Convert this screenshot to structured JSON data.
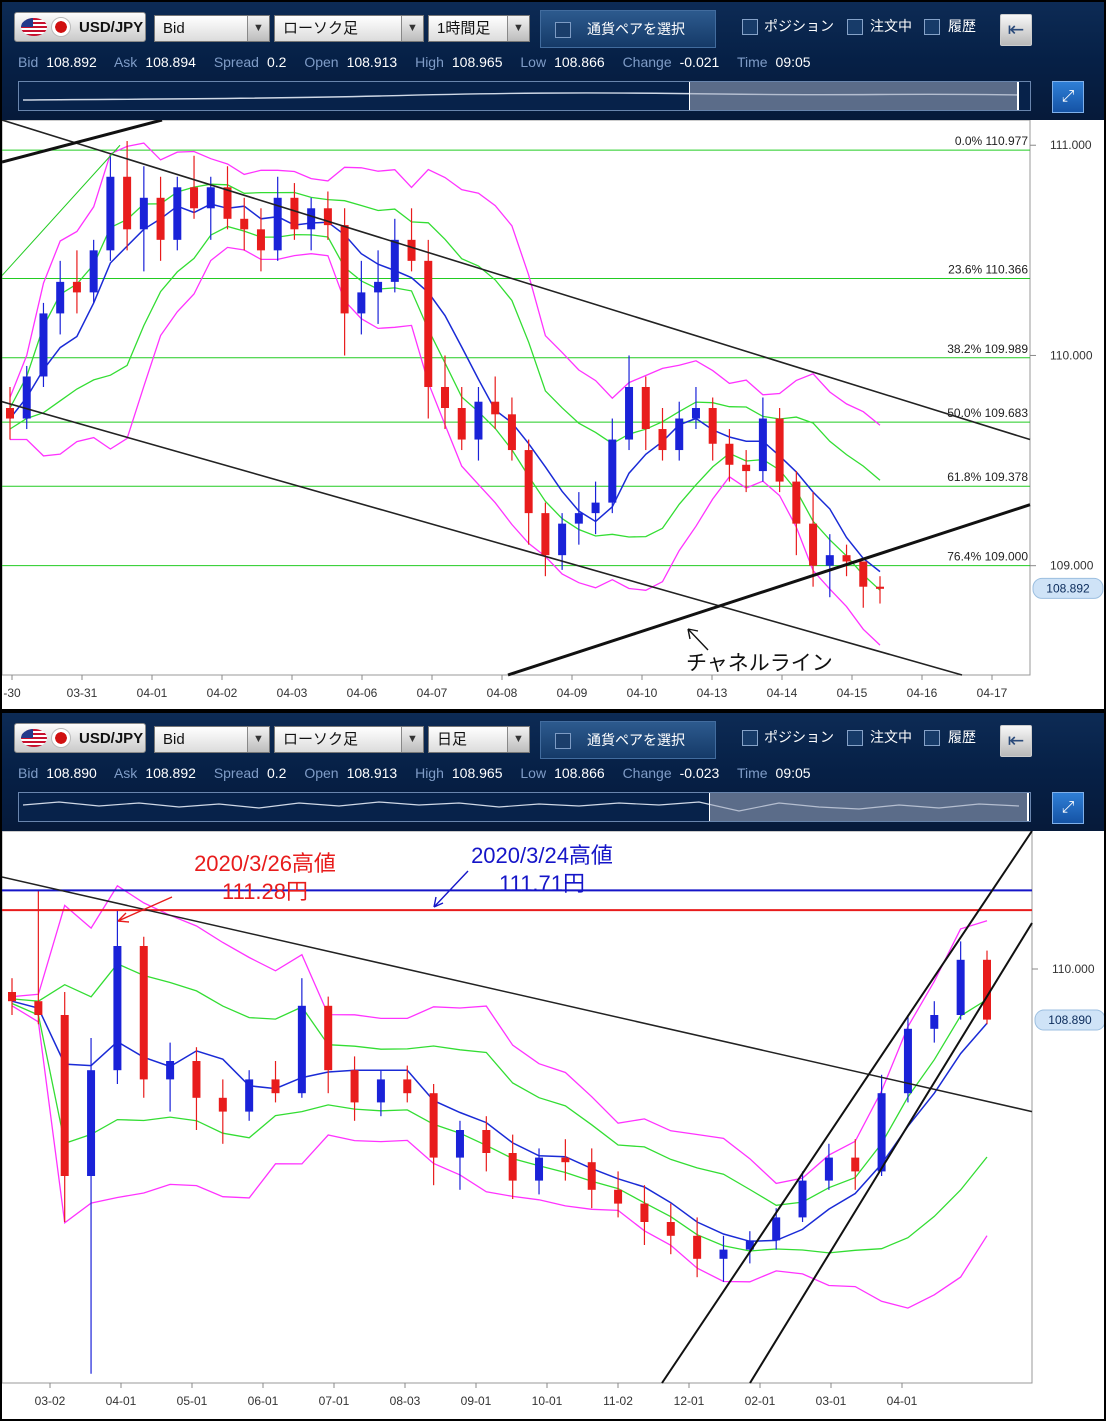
{
  "panel_top": {
    "toolbar": {
      "pair": "USD/JPY",
      "price_type": "Bid",
      "chart_type": "ローソク足",
      "timeframe": "1時間足",
      "pair_select": "通貨ペアを選択",
      "positions": "ポジション",
      "orders": "注文中",
      "history": "履歴"
    },
    "quote": [
      {
        "label": "Bid",
        "value": "108.892"
      },
      {
        "label": "Ask",
        "value": "108.894"
      },
      {
        "label": "Spread",
        "value": "0.2"
      },
      {
        "label": "Open",
        "value": "108.913"
      },
      {
        "label": "High",
        "value": "108.965"
      },
      {
        "label": "Low",
        "value": "108.866"
      },
      {
        "label": "Change",
        "value": "-0.021"
      },
      {
        "label": "Time",
        "value": "09:05"
      }
    ]
  },
  "panel_bottom": {
    "toolbar": {
      "pair": "USD/JPY",
      "price_type": "Bid",
      "chart_type": "ローソク足",
      "timeframe": "日足",
      "pair_select": "通貨ペアを選択",
      "positions": "ポジション",
      "orders": "注文中",
      "history": "履歴"
    },
    "quote": [
      {
        "label": "Bid",
        "value": "108.890"
      },
      {
        "label": "Ask",
        "value": "108.892"
      },
      {
        "label": "Spread",
        "value": "0.2"
      },
      {
        "label": "Open",
        "value": "108.913"
      },
      {
        "label": "High",
        "value": "108.965"
      },
      {
        "label": "Low",
        "value": "108.866"
      },
      {
        "label": "Change",
        "value": "-0.023"
      },
      {
        "label": "Time",
        "value": "09:05"
      }
    ]
  },
  "chart_data": [
    {
      "type": "candlestick",
      "timeframe": "1時間足",
      "x_ticks": [
        "-30",
        "03-31",
        "04-01",
        "04-02",
        "04-03",
        "04-06",
        "04-07",
        "04-08",
        "04-09",
        "04-10",
        "04-13",
        "04-14",
        "04-15",
        "04-16",
        "04-17"
      ],
      "y_ticks": [
        111.0,
        110.0,
        109.0
      ],
      "ylim": [
        108.48,
        111.12
      ],
      "current_price": {
        "value": 108.892,
        "label": "108.892"
      },
      "fibonacci": [
        {
          "label": "0.0%",
          "value": 110.977
        },
        {
          "label": "23.6%",
          "value": 110.366
        },
        {
          "label": "38.2%",
          "value": 109.989
        },
        {
          "label": "50.0%",
          "value": 109.683
        },
        {
          "label": "61.8%",
          "value": 109.378
        },
        {
          "label": "76.4%",
          "value": 109.0
        }
      ],
      "annotation": "チャネルライン",
      "candles": [
        [
          109.75,
          109.85,
          109.6,
          109.7
        ],
        [
          109.7,
          109.95,
          109.65,
          109.9
        ],
        [
          109.9,
          110.25,
          109.85,
          110.2
        ],
        [
          110.2,
          110.45,
          110.1,
          110.35
        ],
        [
          110.35,
          110.5,
          110.2,
          110.3
        ],
        [
          110.3,
          110.55,
          110.25,
          110.5
        ],
        [
          110.5,
          110.95,
          110.45,
          110.85
        ],
        [
          110.85,
          111.02,
          110.5,
          110.6
        ],
        [
          110.6,
          110.9,
          110.4,
          110.75
        ],
        [
          110.75,
          110.85,
          110.45,
          110.55
        ],
        [
          110.55,
          110.85,
          110.5,
          110.8
        ],
        [
          110.8,
          110.95,
          110.65,
          110.7
        ],
        [
          110.7,
          110.85,
          110.55,
          110.8
        ],
        [
          110.8,
          110.9,
          110.6,
          110.65
        ],
        [
          110.65,
          110.75,
          110.5,
          110.6
        ],
        [
          110.6,
          110.7,
          110.4,
          110.5
        ],
        [
          110.5,
          110.85,
          110.45,
          110.75
        ],
        [
          110.75,
          110.82,
          110.55,
          110.6
        ],
        [
          110.6,
          110.75,
          110.5,
          110.7
        ],
        [
          110.7,
          110.78,
          110.55,
          110.62
        ],
        [
          110.62,
          110.7,
          110.0,
          110.2
        ],
        [
          110.2,
          110.45,
          110.1,
          110.3
        ],
        [
          110.3,
          110.5,
          110.15,
          110.35
        ],
        [
          110.35,
          110.65,
          110.3,
          110.55
        ],
        [
          110.55,
          110.7,
          110.4,
          110.45
        ],
        [
          110.45,
          110.55,
          109.7,
          109.85
        ],
        [
          109.85,
          110.0,
          109.65,
          109.75
        ],
        [
          109.75,
          109.85,
          109.55,
          109.6
        ],
        [
          109.6,
          109.85,
          109.5,
          109.78
        ],
        [
          109.78,
          109.9,
          109.65,
          109.72
        ],
        [
          109.72,
          109.8,
          109.5,
          109.55
        ],
        [
          109.55,
          109.6,
          109.1,
          109.25
        ],
        [
          109.25,
          109.3,
          108.95,
          109.05
        ],
        [
          109.05,
          109.25,
          108.98,
          109.2
        ],
        [
          109.2,
          109.35,
          109.1,
          109.25
        ],
        [
          109.25,
          109.4,
          109.15,
          109.3
        ],
        [
          109.3,
          109.7,
          109.25,
          109.6
        ],
        [
          109.6,
          110.0,
          109.55,
          109.85
        ],
        [
          109.85,
          109.9,
          109.55,
          109.65
        ],
        [
          109.65,
          109.75,
          109.5,
          109.55
        ],
        [
          109.55,
          109.78,
          109.5,
          109.7
        ],
        [
          109.7,
          109.85,
          109.65,
          109.75
        ],
        [
          109.75,
          109.8,
          109.5,
          109.58
        ],
        [
          109.58,
          109.65,
          109.4,
          109.48
        ],
        [
          109.48,
          109.55,
          109.35,
          109.45
        ],
        [
          109.45,
          109.8,
          109.4,
          109.7
        ],
        [
          109.7,
          109.75,
          109.35,
          109.4
        ],
        [
          109.4,
          109.45,
          109.05,
          109.2
        ],
        [
          109.2,
          109.35,
          108.9,
          109.0
        ],
        [
          109.0,
          109.15,
          108.85,
          109.05
        ],
        [
          109.05,
          109.1,
          108.95,
          109.02
        ],
        [
          109.02,
          109.0,
          108.8,
          108.9
        ],
        [
          108.9,
          108.95,
          108.82,
          108.89
        ]
      ]
    },
    {
      "type": "candlestick",
      "timeframe": "日足",
      "x_ticks": [
        "03-02",
        "04-01",
        "05-01",
        "06-01",
        "07-01",
        "08-03",
        "09-01",
        "10-01",
        "11-02",
        "12-01",
        "02-01",
        "03-01",
        "04-01"
      ],
      "y_ticks": [
        110.0
      ],
      "ylim": [
        101.0,
        113.0
      ],
      "current_price": {
        "value": 108.89,
        "label": "108.890"
      },
      "hlines": [
        {
          "value": 111.71,
          "color": "#1515c8"
        },
        {
          "value": 111.28,
          "color": "#e81c1c"
        }
      ],
      "annotations": [
        {
          "label": "2020/3/26高値",
          "sub": "111.28円",
          "color": "#e81c1c"
        },
        {
          "label": "2020/3/24高値",
          "sub": "111.71円",
          "color": "#1515c8"
        }
      ],
      "candles": [
        [
          109.5,
          109.8,
          109.0,
          109.3
        ],
        [
          109.3,
          111.7,
          108.8,
          109.0
        ],
        [
          109.0,
          109.5,
          104.5,
          105.5
        ],
        [
          105.5,
          108.5,
          101.2,
          107.8
        ],
        [
          107.8,
          111.28,
          107.5,
          110.5
        ],
        [
          110.5,
          110.7,
          107.2,
          107.6
        ],
        [
          107.6,
          108.4,
          106.9,
          108.0
        ],
        [
          108.0,
          108.3,
          106.5,
          107.2
        ],
        [
          107.2,
          107.6,
          106.2,
          106.9
        ],
        [
          106.9,
          107.8,
          106.7,
          107.6
        ],
        [
          107.6,
          108.0,
          107.1,
          107.3
        ],
        [
          107.3,
          109.8,
          107.2,
          109.2
        ],
        [
          109.2,
          109.4,
          107.3,
          107.8
        ],
        [
          107.8,
          108.1,
          106.7,
          107.1
        ],
        [
          107.1,
          107.8,
          106.8,
          107.6
        ],
        [
          107.6,
          107.9,
          107.1,
          107.3
        ],
        [
          107.3,
          107.5,
          105.3,
          105.9
        ],
        [
          105.9,
          106.7,
          105.2,
          106.5
        ],
        [
          106.5,
          106.8,
          105.6,
          106.0
        ],
        [
          106.0,
          106.4,
          105.0,
          105.4
        ],
        [
          105.4,
          106.1,
          105.1,
          105.9
        ],
        [
          105.9,
          106.3,
          105.4,
          105.8
        ],
        [
          105.8,
          106.1,
          104.8,
          105.2
        ],
        [
          105.2,
          105.6,
          104.6,
          104.9
        ],
        [
          104.9,
          105.3,
          104.0,
          104.5
        ],
        [
          104.5,
          104.9,
          103.8,
          104.2
        ],
        [
          104.2,
          104.6,
          103.3,
          103.7
        ],
        [
          103.7,
          104.2,
          103.2,
          103.9
        ],
        [
          103.9,
          104.3,
          103.6,
          104.1
        ],
        [
          104.1,
          104.8,
          103.9,
          104.6
        ],
        [
          104.6,
          105.6,
          104.5,
          105.4
        ],
        [
          105.4,
          106.2,
          105.2,
          105.9
        ],
        [
          105.9,
          106.3,
          105.2,
          105.6
        ],
        [
          105.6,
          107.7,
          105.5,
          107.3
        ],
        [
          107.3,
          109.0,
          107.1,
          108.7
        ],
        [
          108.7,
          109.3,
          108.4,
          109.0
        ],
        [
          109.0,
          110.6,
          108.9,
          110.2
        ],
        [
          110.2,
          110.4,
          108.8,
          108.9
        ]
      ]
    }
  ]
}
